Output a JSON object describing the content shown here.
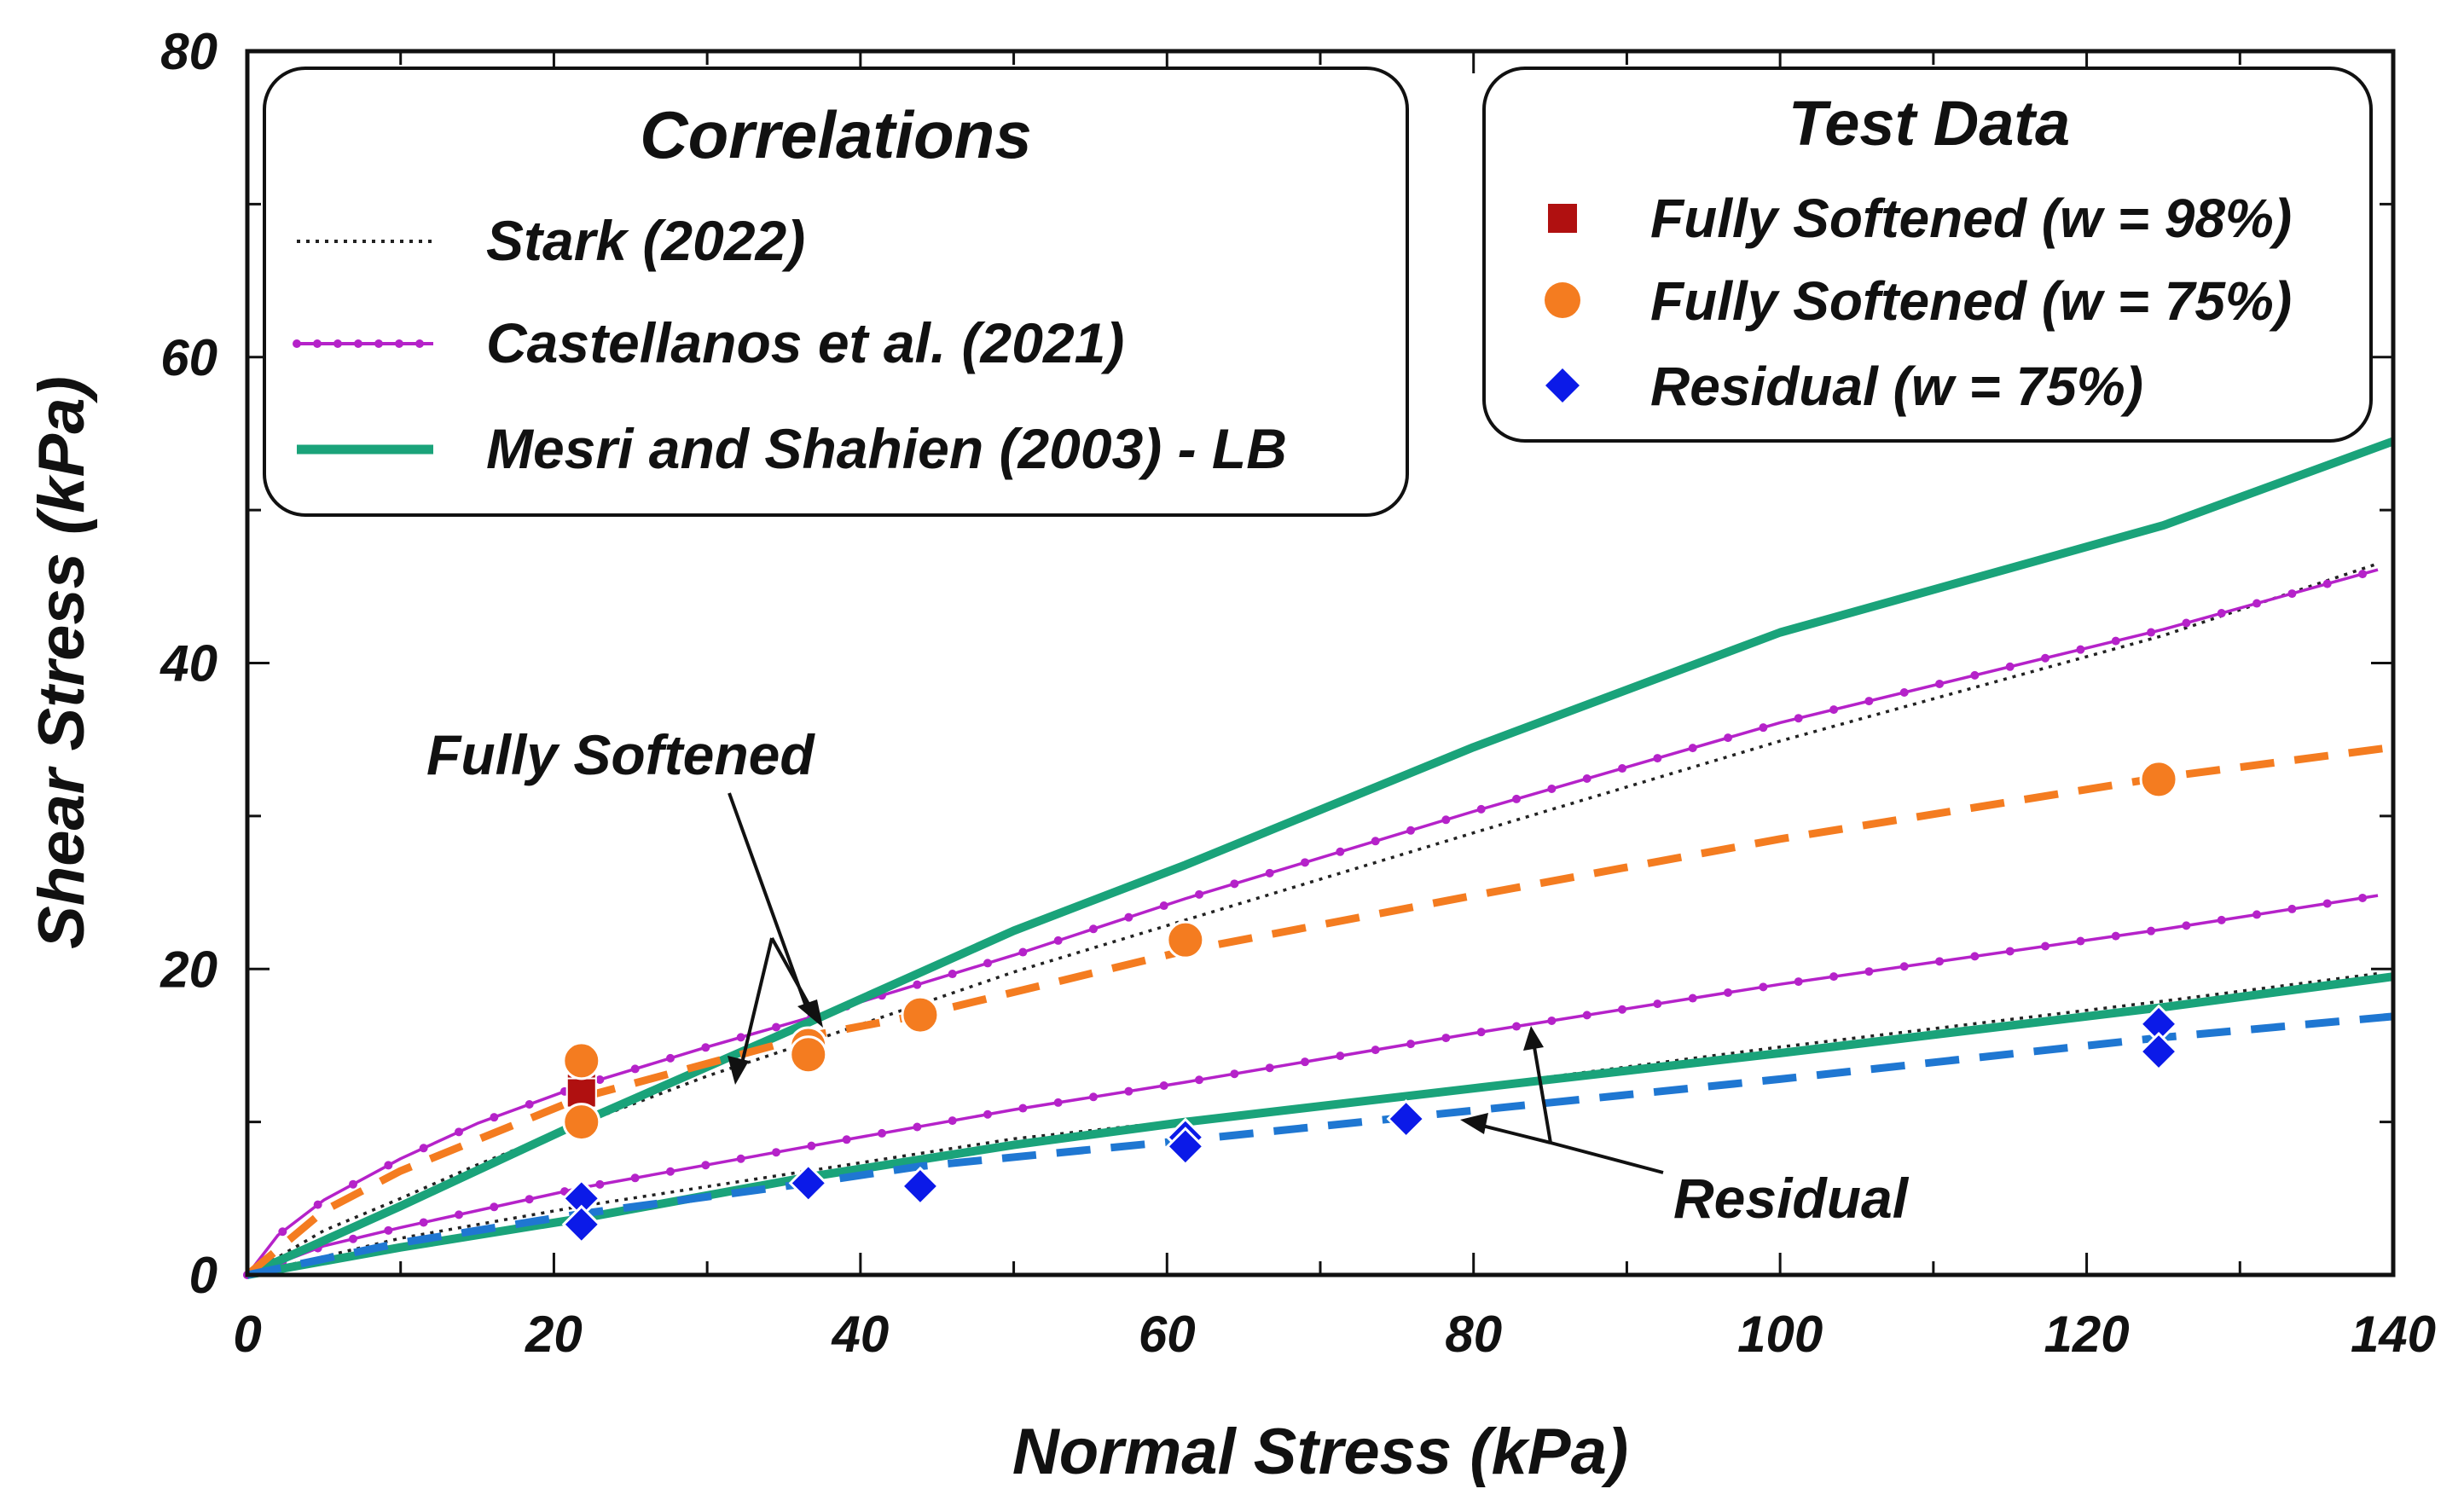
{
  "chart_data": {
    "type": "scatter",
    "xlabel": "Normal Stress (kPa)",
    "ylabel": "Shear Stress (kPa)",
    "xlim": [
      0,
      140
    ],
    "ylim": [
      0,
      80
    ],
    "xticks": [
      0,
      20,
      40,
      60,
      80,
      100,
      120,
      140
    ],
    "yticks": [
      0,
      20,
      40,
      60,
      80
    ],
    "x_minor_step": 10,
    "y_minor_step": 10,
    "grid": false,
    "legends": {
      "correlations": {
        "title": "Correlations",
        "entries": [
          "Stark (2022)",
          "Castellanos et al. (2021)",
          "Mesri and Shahien (2003) - LB"
        ]
      },
      "test_data": {
        "title": "Test Data",
        "entries": [
          "Fully Softened (w = 98%)",
          "Fully Softened (w = 75%)",
          "Residual (w = 75%)"
        ]
      }
    },
    "annotations": {
      "fully_softened": "Fully Softened",
      "residual": "Residual"
    },
    "series": [
      {
        "name": "Stark (2022) - Fully Softened",
        "style": "dotted",
        "color": "#222222",
        "x": [
          0,
          5,
          10,
          15,
          21.8,
          30,
          36.6,
          50,
          61.2,
          80,
          100,
          125,
          139
        ],
        "y": [
          0,
          2.9,
          5.0,
          7.2,
          9.9,
          13.0,
          15.2,
          19.8,
          23.2,
          28.9,
          34.9,
          41.8,
          46.5
        ]
      },
      {
        "name": "Stark (2022) - Residual",
        "style": "dotted",
        "color": "#222222",
        "x": [
          0,
          10,
          21.8,
          36.6,
          50,
          61.2,
          80,
          100,
          125,
          139
        ],
        "y": [
          0,
          2.4,
          4.5,
          6.8,
          8.9,
          10.1,
          12.3,
          14.9,
          17.9,
          19.7
        ]
      },
      {
        "name": "Castellanos et al. (2021) - Fully Softened",
        "style": "line-dot",
        "color": "#b522c9",
        "x": [
          0,
          2,
          5,
          10,
          15,
          21.8,
          30,
          36.6,
          50,
          61.2,
          80,
          100,
          125,
          139
        ],
        "y": [
          0,
          2.6,
          4.9,
          7.6,
          9.9,
          12.4,
          14.9,
          16.8,
          20.9,
          24.6,
          30.3,
          36.1,
          42.2,
          46.1
        ]
      },
      {
        "name": "Castellanos et al. (2021) - Residual",
        "style": "line-dot",
        "color": "#b522c9",
        "x": [
          0,
          5,
          10,
          21.8,
          36.6,
          50,
          61.2,
          80,
          100,
          125,
          139
        ],
        "y": [
          0,
          1.9,
          3.1,
          5.7,
          8.4,
          10.8,
          12.6,
          15.8,
          19.0,
          22.6,
          24.8
        ]
      },
      {
        "name": "Mesri and Shahien (2003) - LB - Fully Softened",
        "style": "solid",
        "color": "#1aa37a",
        "x": [
          0,
          10,
          21.8,
          36.6,
          50,
          61.2,
          80,
          100,
          125,
          140
        ],
        "y": [
          0,
          4.5,
          10.0,
          16.5,
          22.5,
          26.8,
          34.5,
          42.0,
          49.0,
          54.5
        ]
      },
      {
        "name": "Mesri and Shahien (2003) - LB - Residual",
        "style": "solid",
        "color": "#1aa37a",
        "x": [
          0,
          10,
          21.8,
          36.6,
          50,
          61.2,
          80,
          100,
          125,
          140
        ],
        "y": [
          0,
          1.8,
          3.7,
          6.4,
          8.5,
          10.0,
          12.2,
          14.5,
          17.5,
          19.5
        ]
      },
      {
        "name": "Fully Softened (w = 75%) fit",
        "style": "dashed",
        "color": "#f47c20",
        "x": [
          0,
          5,
          10,
          21.8,
          36.6,
          43.9,
          61.2,
          80,
          100,
          124.7,
          140
        ],
        "y": [
          0,
          4.2,
          6.8,
          11.6,
          15.6,
          17.0,
          21.2,
          24.8,
          28.5,
          32.5,
          34.5
        ]
      },
      {
        "name": "Residual (w = 75%) fit",
        "style": "dashed",
        "color": "#1f77d2",
        "x": [
          0,
          10,
          21.8,
          36.6,
          43.9,
          61.2,
          75.6,
          100,
          124.7,
          140
        ],
        "y": [
          0,
          2.1,
          4.0,
          6.0,
          7.1,
          8.8,
          10.3,
          12.8,
          15.5,
          16.9
        ]
      }
    ],
    "points": [
      {
        "name": "Fully Softened (w = 98%)",
        "marker": "square",
        "color": "#b01010",
        "x": [
          21.8,
          21.8
        ],
        "y": [
          12.2,
          11.9
        ]
      },
      {
        "name": "Fully Softened (w = 75%)",
        "marker": "circle",
        "color": "#f47c20",
        "x": [
          21.8,
          21.8,
          36.6,
          36.6,
          43.9,
          61.2,
          124.7
        ],
        "y": [
          14.0,
          10.0,
          15.0,
          14.4,
          17.0,
          21.9,
          32.4
        ]
      },
      {
        "name": "Residual (w = 75%)",
        "marker": "diamond",
        "color": "#0b1ae8",
        "x": [
          21.8,
          21.8,
          36.6,
          43.9,
          61.2,
          61.2,
          75.6,
          124.7,
          124.7
        ],
        "y": [
          5.0,
          3.3,
          6.0,
          5.8,
          9.0,
          8.4,
          10.2,
          16.4,
          14.6
        ]
      }
    ]
  }
}
